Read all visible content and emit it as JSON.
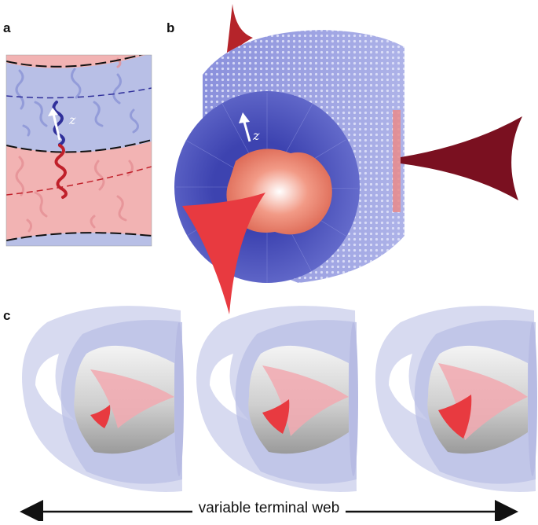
{
  "panels": {
    "a": {
      "label": "a",
      "axis_label": "z"
    },
    "b": {
      "label": "b",
      "axis_label": "z"
    },
    "c": {
      "label": "c"
    }
  },
  "footer": {
    "caption": "variable terminal web"
  },
  "colors": {
    "blue_domain": "#b8bfe6",
    "red_domain": "#f2b3b3",
    "blue_chain": "#2f2f9a",
    "red_chain": "#c0202a",
    "cylinder_blue": "#4a4fb8",
    "core_red": "#e8806f",
    "web_red": "#e83a40",
    "web_dark": "#7a1020",
    "shell": "#c9cdeb"
  }
}
